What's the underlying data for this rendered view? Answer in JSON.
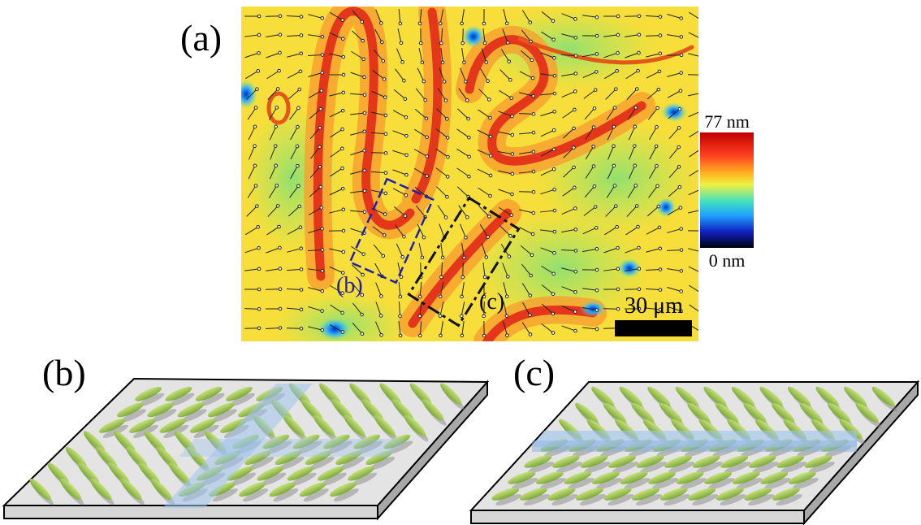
{
  "panels": [
    {
      "label": "(a)"
    },
    {
      "label": "(b)"
    },
    {
      "label": "(c)"
    }
  ],
  "colorbar": {
    "max_label": "77 nm",
    "min_label": "0 nm"
  },
  "scale_bar": {
    "label": "30 μm"
  },
  "regions": [
    {
      "label": "(b)"
    },
    {
      "label": "(c)"
    }
  ]
}
